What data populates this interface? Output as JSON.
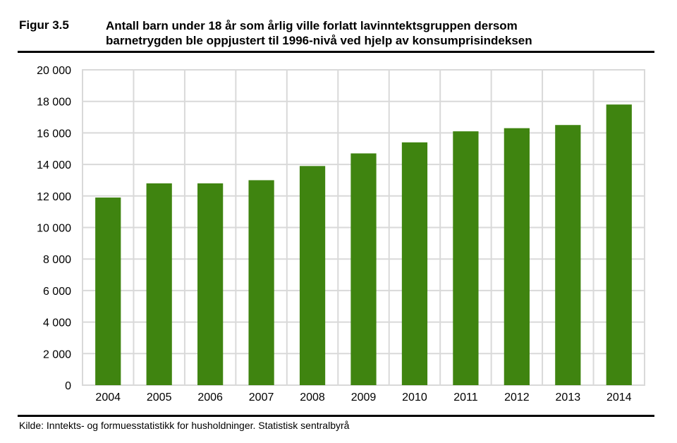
{
  "header": {
    "figure_label": "Figur 3.5",
    "title_line1": "Antall barn under 18 år som årlig ville forlatt lavinntektsgruppen dersom",
    "title_line2": "barnetrygden ble oppjustert til 1996-nivå ved hjelp av konsumprisindeksen"
  },
  "footer": {
    "source": "Kilde: Inntekts- og formuesstatistikk for husholdninger. Statistisk sentralbyrå"
  },
  "chart_data": {
    "type": "bar",
    "title": "Antall barn under 18 år som årlig ville forlatt lavinntektsgruppen dersom barnetrygden ble oppjustert til 1996-nivå ved hjelp av konsumprisindeksen",
    "categories": [
      "2004",
      "2005",
      "2006",
      "2007",
      "2008",
      "2009",
      "2010",
      "2011",
      "2012",
      "2013",
      "2014"
    ],
    "values": [
      11900,
      12800,
      12800,
      13000,
      13900,
      14700,
      15400,
      16100,
      16300,
      16500,
      17800
    ],
    "xlabel": "",
    "ylabel": "",
    "ylim": [
      0,
      20000
    ],
    "yticks": [
      0,
      2000,
      4000,
      6000,
      8000,
      10000,
      12000,
      14000,
      16000,
      18000,
      20000
    ],
    "ytick_labels": [
      "0",
      "2 000",
      "4 000",
      "6 000",
      "8 000",
      "10 000",
      "12 000",
      "14 000",
      "16 000",
      "18 000",
      "20 000"
    ],
    "grid": true,
    "legend": "none",
    "bar_color": "#3f8410",
    "grid_color": "#d9d9d9"
  }
}
